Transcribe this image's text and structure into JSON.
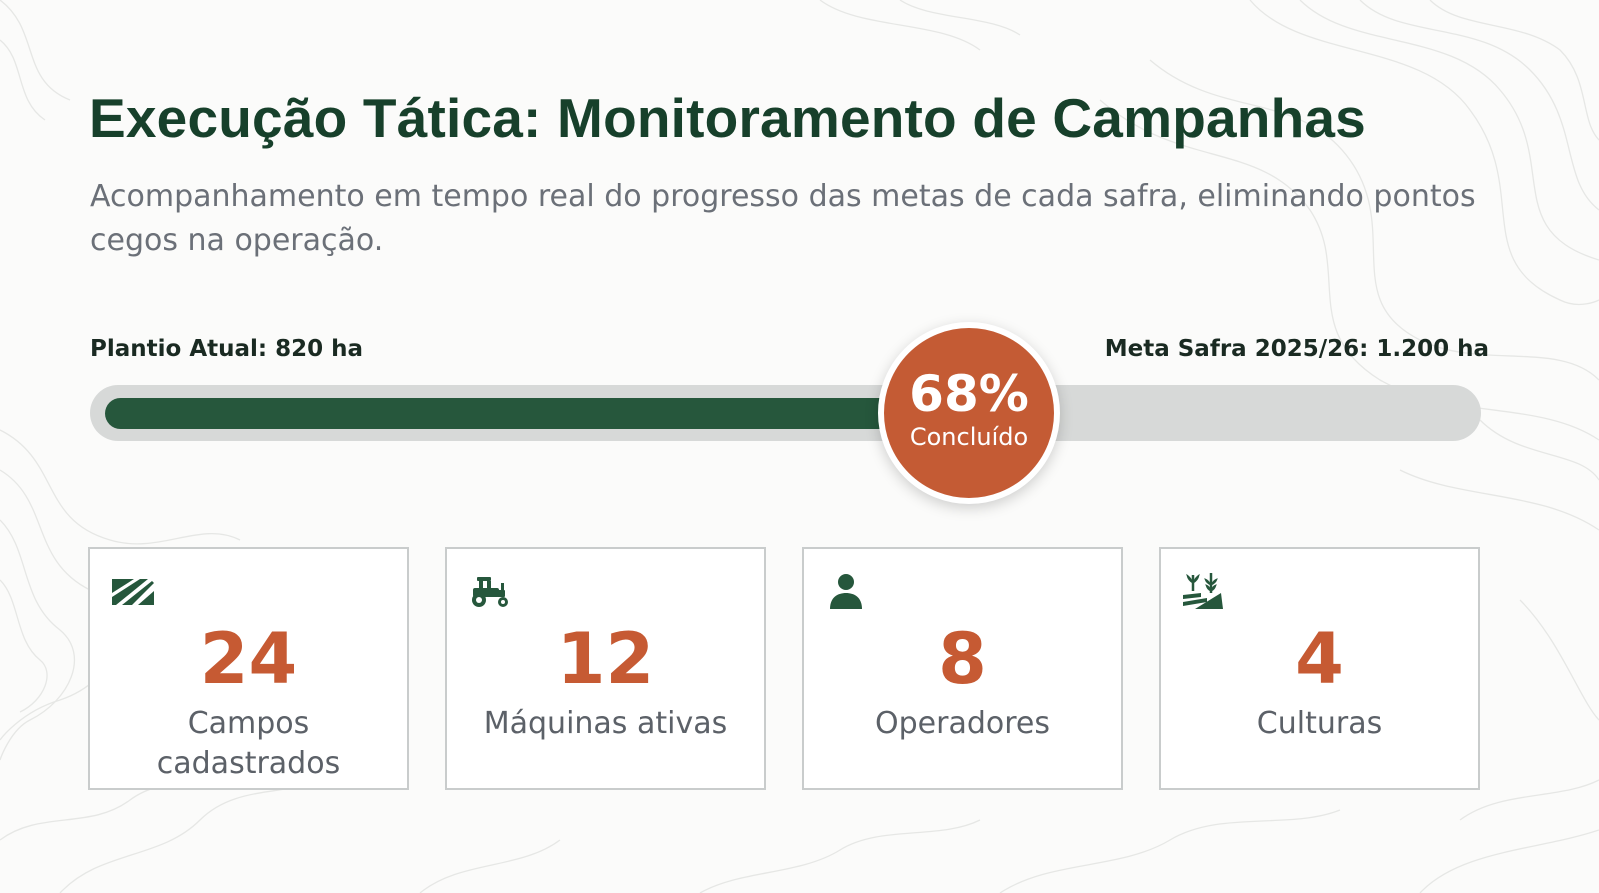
{
  "header": {
    "title": "Execução Tática: Monitoramento de Campanhas",
    "subtitle": "Acompanhamento em tempo real do progresso das metas de cada safra, eliminando pontos cegos na operação."
  },
  "progress": {
    "current_label": "Plantio Atual: 820 ha",
    "target_label": "Meta Safra 2025/26: 1.200 ha",
    "percent": 68,
    "percent_text": "68%",
    "status_text": "Concluído"
  },
  "stats": [
    {
      "icon": "field-icon",
      "value": "24",
      "label": "Campos cadastrados"
    },
    {
      "icon": "tractor-icon",
      "value": "12",
      "label": "Máquinas ativas"
    },
    {
      "icon": "person-icon",
      "value": "8",
      "label": "Operadores"
    },
    {
      "icon": "crop-icon",
      "value": "4",
      "label": "Culturas"
    }
  ],
  "colors": {
    "title": "#17402b",
    "progress_fill": "#26573c",
    "progress_track": "#d7d9d8",
    "accent": "#c45b34",
    "icon": "#26573c"
  }
}
